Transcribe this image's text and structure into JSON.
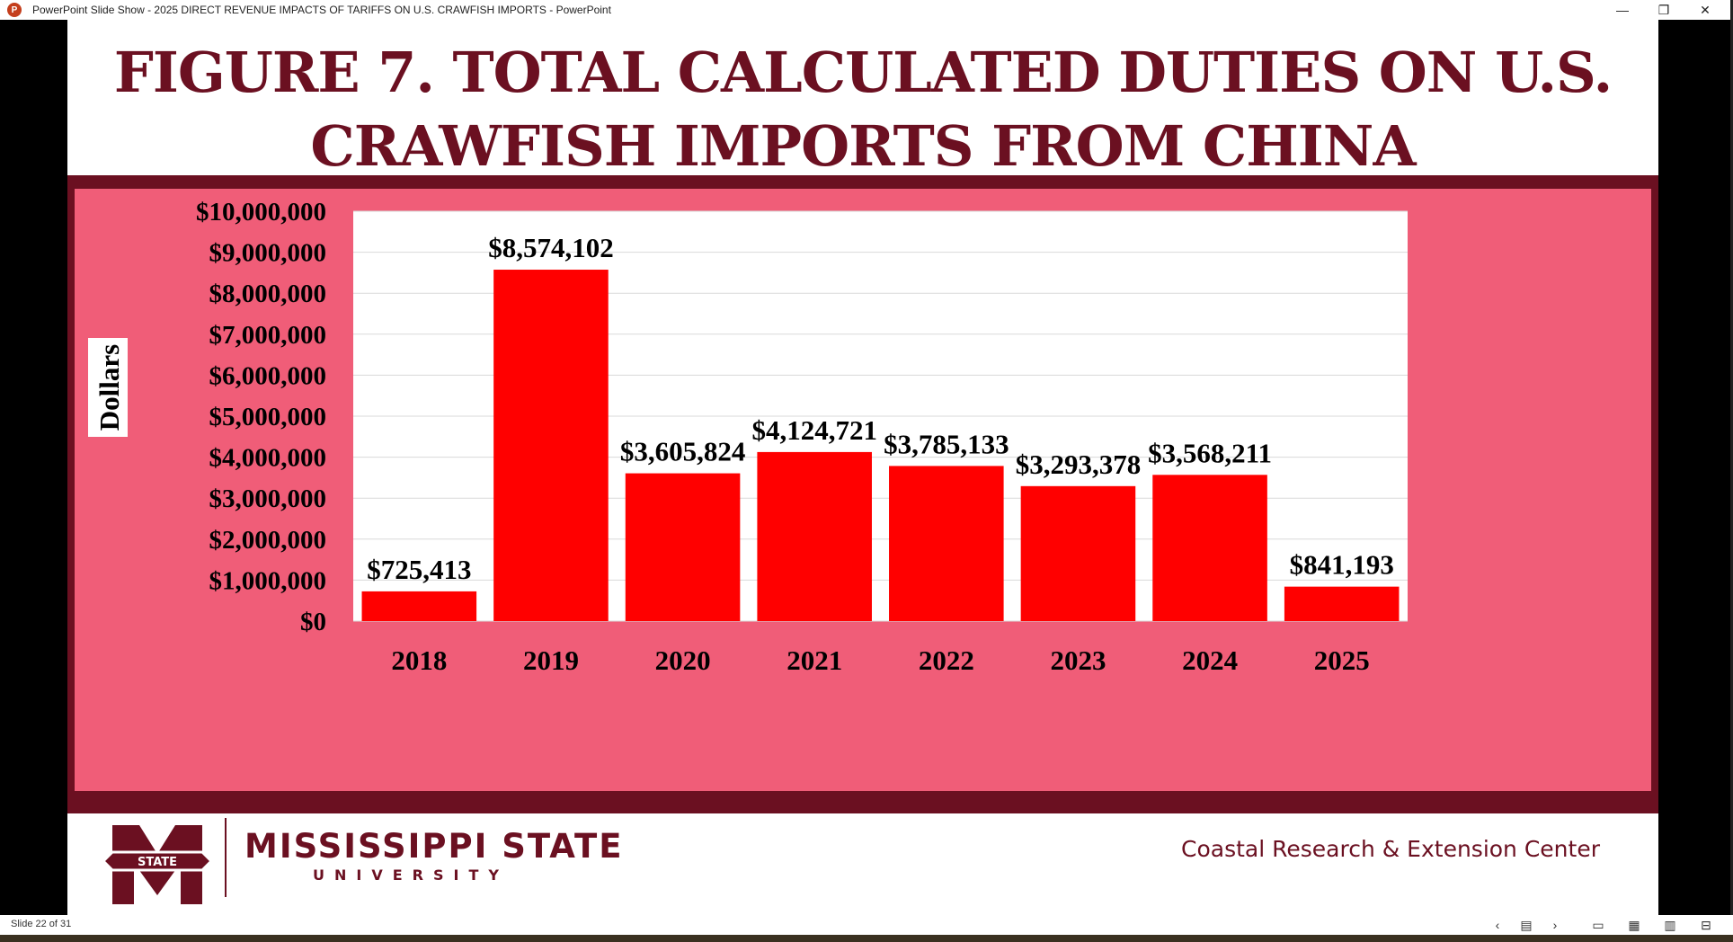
{
  "window": {
    "app_icon_letter": "P",
    "title": "PowerPoint Slide Show  -  2025 DIRECT REVENUE IMPACTS OF TARIFFS ON U.S. CRAWFISH IMPORTS - PowerPoint",
    "minimize": "—",
    "restore": "❐",
    "close": "✕"
  },
  "slide": {
    "title_line1": "FIGURE 7. TOTAL CALCULATED DUTIES ON U.S.",
    "title_line2": "CRAWFISH IMPORTS FROM CHINA",
    "colors": {
      "maroon": "#6b1021",
      "pink": "#f05d78",
      "bar": "#ff0000",
      "plot_bg": "#ffffff"
    },
    "footer": {
      "logo_badge": "STATE",
      "university_name": "MISSISSIPPI STATE",
      "university_sub": "UNIVERSITY",
      "center_name": "Coastal Research & Extension Center"
    }
  },
  "chart_data": {
    "type": "bar",
    "title": "",
    "ylabel": "Dollars",
    "xlabel": "",
    "categories": [
      "2018",
      "2019",
      "2020",
      "2021",
      "2022",
      "2023",
      "2024",
      "2025"
    ],
    "values": [
      725413,
      8574102,
      3605824,
      4124721,
      3785133,
      3293378,
      3568211,
      841193
    ],
    "data_labels": [
      "$725,413",
      "$8,574,102",
      "$3,605,824",
      "$4,124,721",
      "$3,785,133",
      "$3,293,378",
      "$3,568,211",
      "$841,193"
    ],
    "ylim": [
      0,
      10000000
    ],
    "yticks": [
      0,
      1000000,
      2000000,
      3000000,
      4000000,
      5000000,
      6000000,
      7000000,
      8000000,
      9000000,
      10000000
    ],
    "ytick_labels": [
      "$0",
      "$1,000,000",
      "$2,000,000",
      "$3,000,000",
      "$4,000,000",
      "$5,000,000",
      "$6,000,000",
      "$7,000,000",
      "$8,000,000",
      "$9,000,000",
      "$10,000,000"
    ],
    "grid": true,
    "legend": "none"
  },
  "statusbar": {
    "slide_counter": "Slide 22 of 31",
    "prev": "‹",
    "menu": "▤",
    "next": "›",
    "normal_view": "▭",
    "sorter_view": "▦",
    "reading_view": "▥",
    "slideshow_view": "⊟"
  }
}
